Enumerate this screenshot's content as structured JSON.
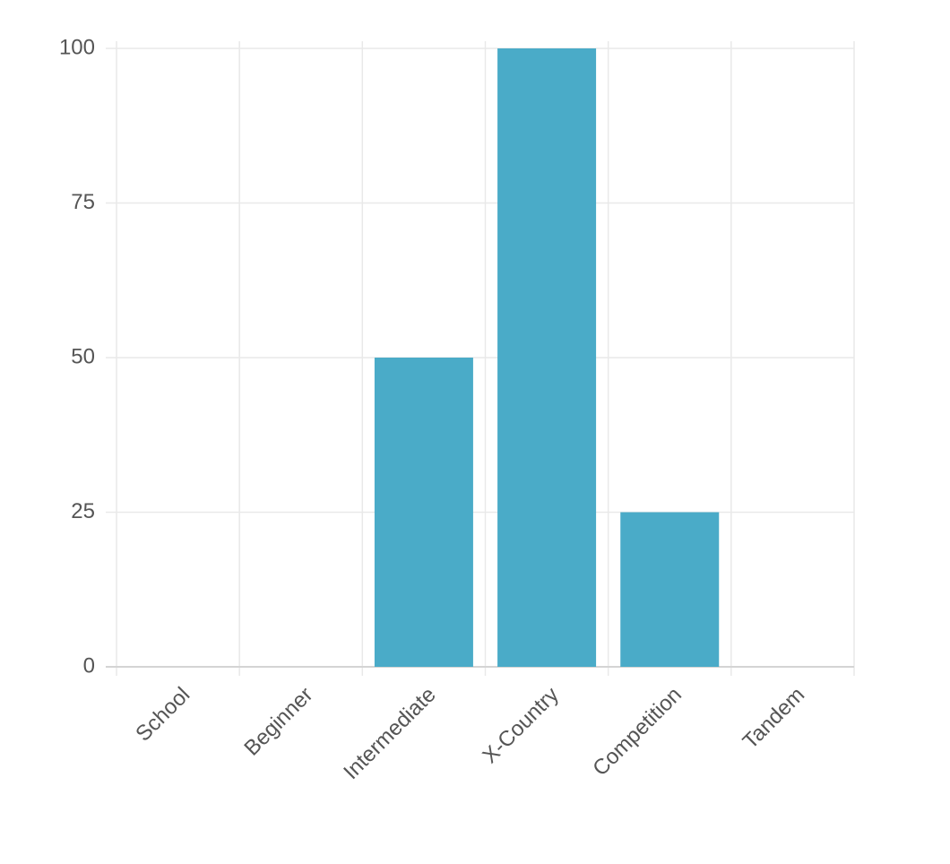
{
  "chart_data": {
    "type": "bar",
    "categories": [
      "School",
      "Beginner",
      "Intermediate",
      "X-Country",
      "Competition",
      "Tandem"
    ],
    "values": [
      0,
      0,
      50,
      100,
      25,
      0
    ],
    "color": "#4aabc8",
    "ylim": [
      0,
      100
    ],
    "yticks": [
      0,
      25,
      50,
      75,
      100
    ],
    "grid": true
  }
}
